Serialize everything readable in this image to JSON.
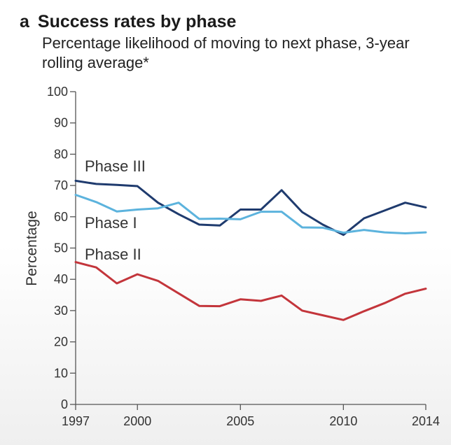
{
  "panel_letter": "a",
  "chart_data": {
    "type": "line",
    "title": "Success rates by phase",
    "subtitle": "Percentage likelihood of moving to next phase, 3-year rolling average*",
    "xlabel": "",
    "ylabel": "Percentage",
    "xlim": [
      1997,
      2014
    ],
    "ylim": [
      0,
      100
    ],
    "x_ticks": [
      1997,
      2000,
      2005,
      2010,
      2014
    ],
    "y_ticks": [
      0,
      10,
      20,
      30,
      40,
      50,
      60,
      70,
      80,
      90,
      100
    ],
    "grid": false,
    "legend": "inline labels",
    "x": [
      1997,
      1998,
      1999,
      2000,
      2001,
      2002,
      2003,
      2004,
      2005,
      2006,
      2007,
      2008,
      2009,
      2010,
      2011,
      2012,
      2013,
      2014
    ],
    "series": [
      {
        "name": "Phase III",
        "color": "#1f3b6e",
        "values": [
          71.5,
          70.5,
          70.2,
          69.8,
          64.5,
          60.8,
          57.5,
          57.2,
          62.3,
          62.3,
          68.5,
          61.5,
          57.5,
          54.2,
          59.5,
          62.0,
          64.5,
          63.0
        ]
      },
      {
        "name": "Phase I",
        "color": "#5cb3dd",
        "values": [
          67.0,
          64.7,
          61.7,
          62.3,
          62.7,
          64.5,
          59.3,
          59.4,
          59.2,
          61.6,
          61.6,
          56.6,
          56.5,
          54.9,
          55.8,
          55.0,
          54.7,
          55.0
        ]
      },
      {
        "name": "Phase II",
        "color": "#c3353b",
        "values": [
          45.5,
          43.8,
          38.7,
          41.6,
          39.5,
          35.5,
          31.5,
          31.4,
          33.6,
          33.1,
          34.8,
          30.0,
          28.5,
          27.0,
          29.8,
          32.4,
          35.4,
          37.0
        ]
      }
    ]
  }
}
